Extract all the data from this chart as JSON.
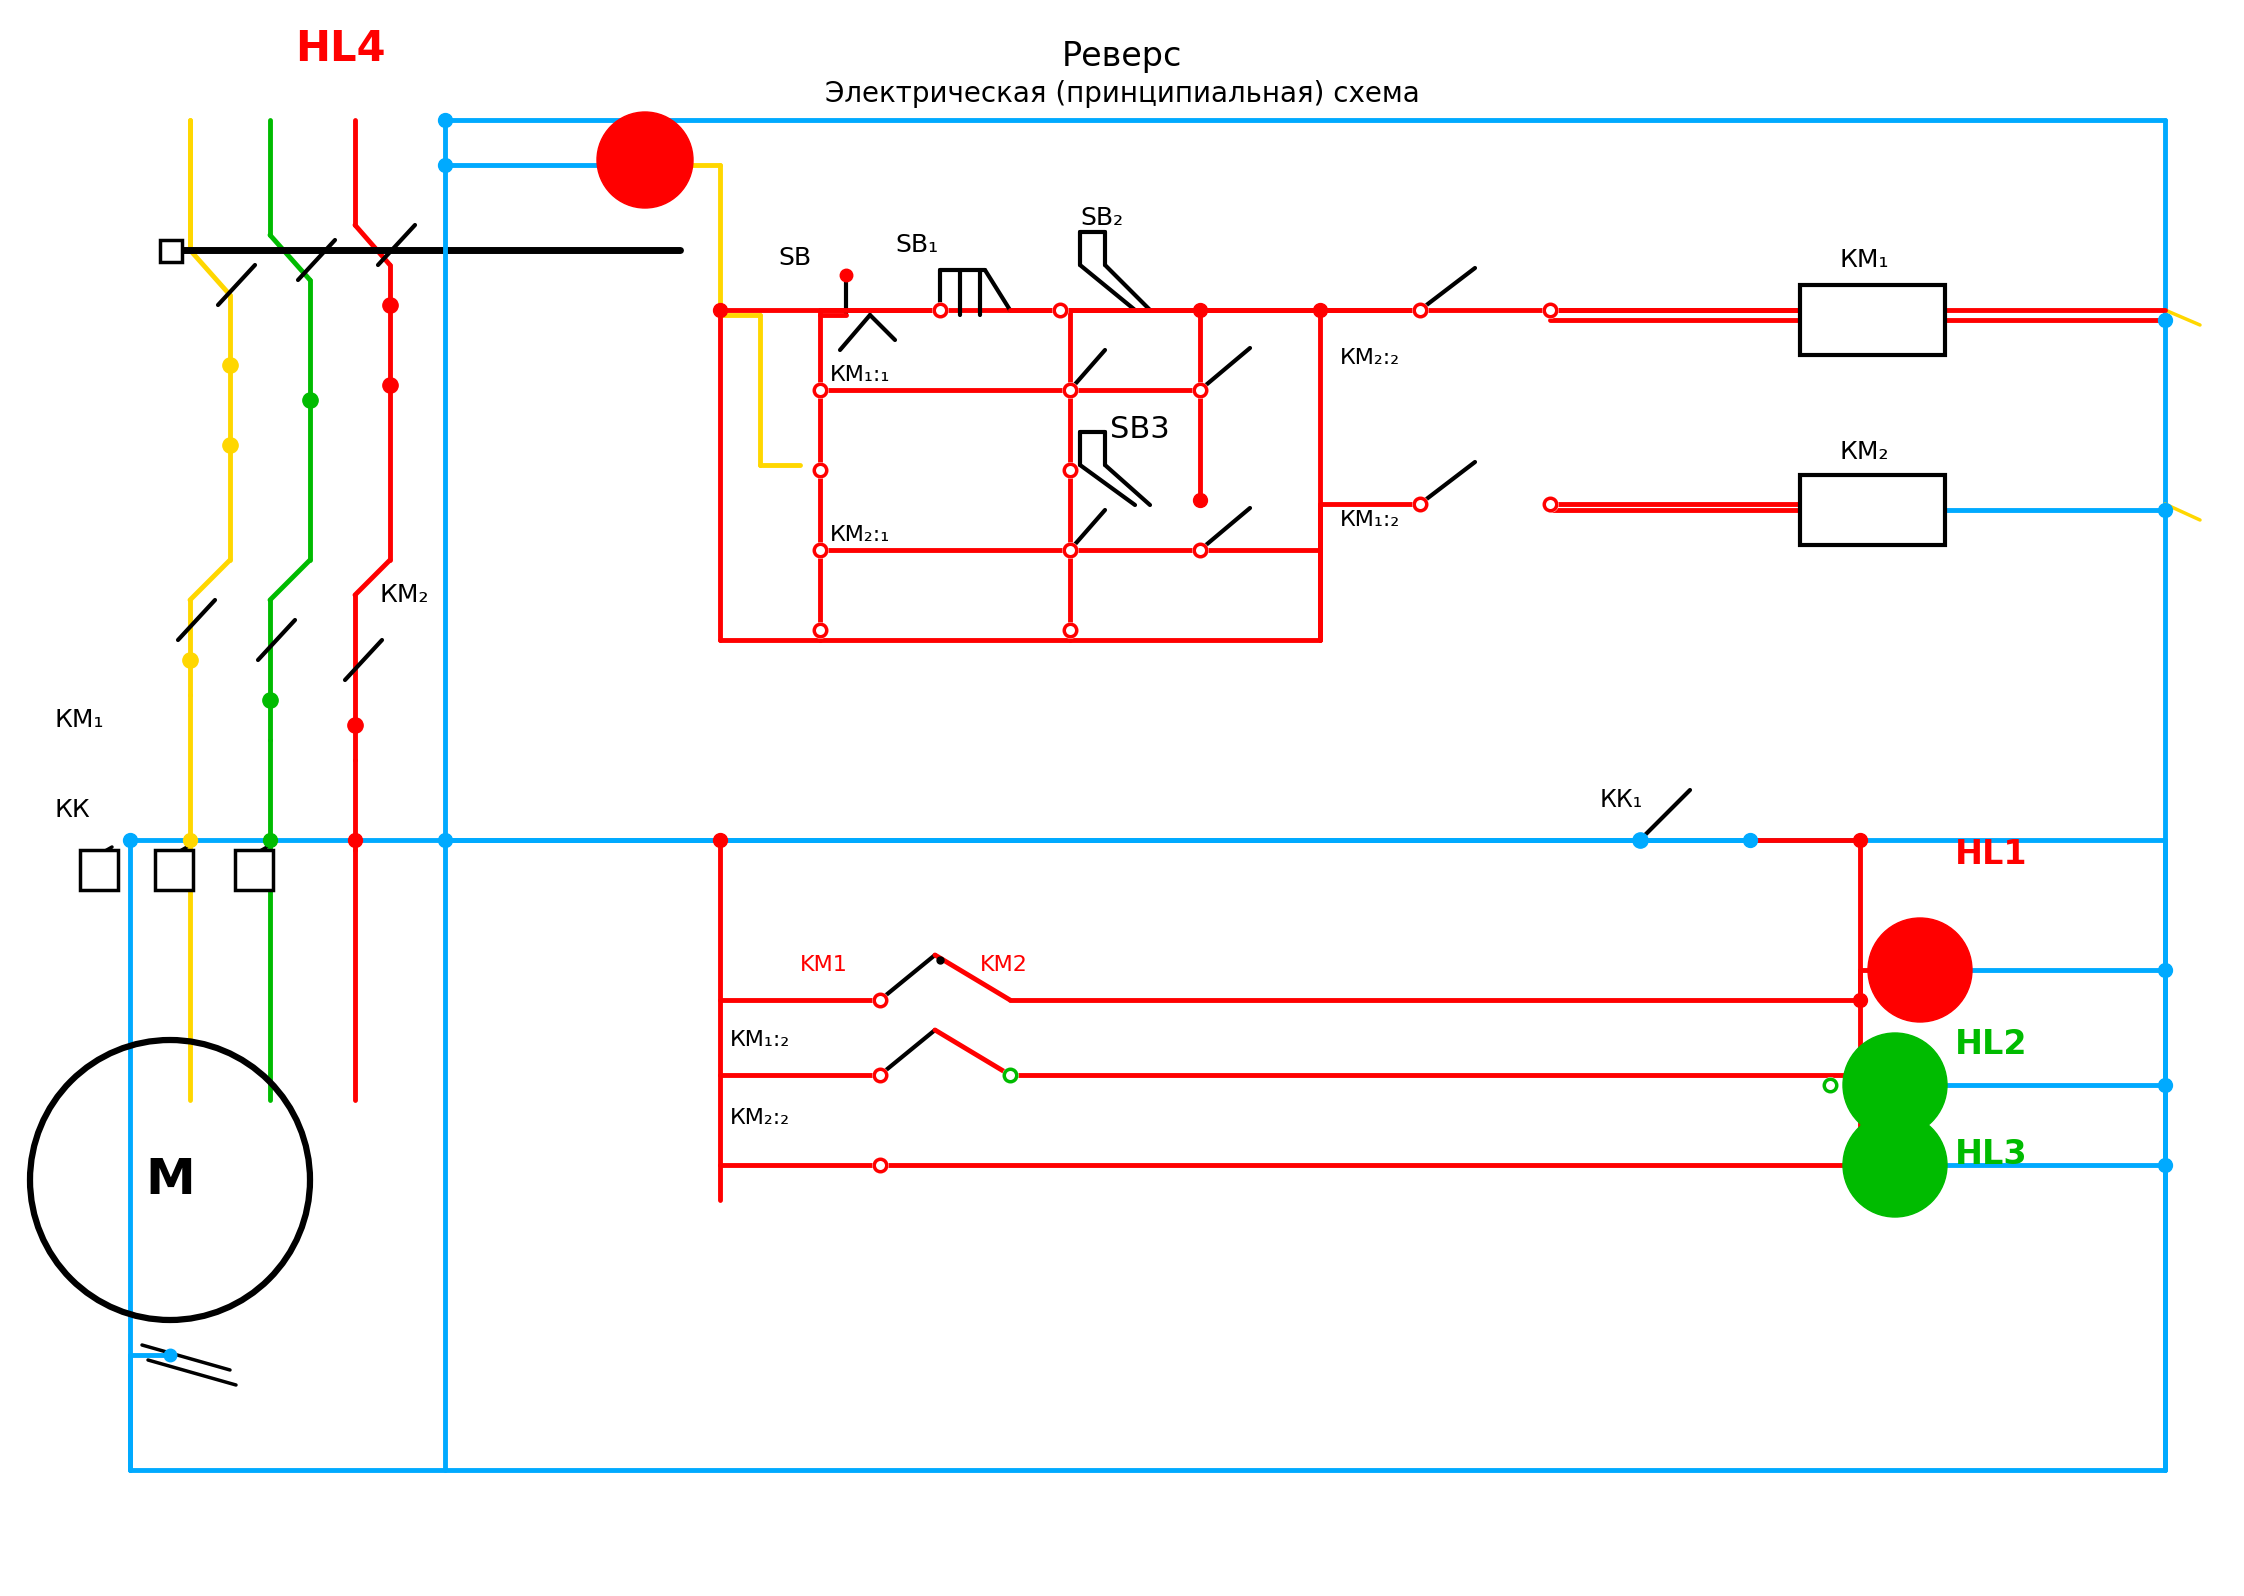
{
  "title1": "Реверс",
  "title2": "Электрическая (принципиальная) схема",
  "lbl_HL4": "HL4",
  "lbl_HL1": "HL1",
  "lbl_HL2": "HL2",
  "lbl_HL3": "HL3",
  "lbl_KM1": "КМ₁",
  "lbl_KM2": "КМ₂",
  "lbl_KK": "КК",
  "lbl_M": "М",
  "lbl_SB": "SB",
  "lbl_SB1": "SB₁",
  "lbl_SB2": "SB₂",
  "lbl_SB3": "SB3",
  "lbl_KM11": "КМ₁:₁",
  "lbl_KM21": "КМ₂:₁",
  "lbl_KM22": "КМ₂:₂",
  "lbl_KM12": "КМ₁:₂",
  "lbl_KM12b": "КМ₁:₂",
  "lbl_KM22b": "КМ₂:₂",
  "lbl_KK1": "КК₁",
  "lbl_KM1b": "KM1",
  "lbl_KM2b": "KM2",
  "red": "#ff0000",
  "blue": "#00AAFF",
  "yellow": "#FFD700",
  "green": "#00BB00",
  "black": "#000000",
  "white": "#ffffff",
  "bg": "#ffffff"
}
